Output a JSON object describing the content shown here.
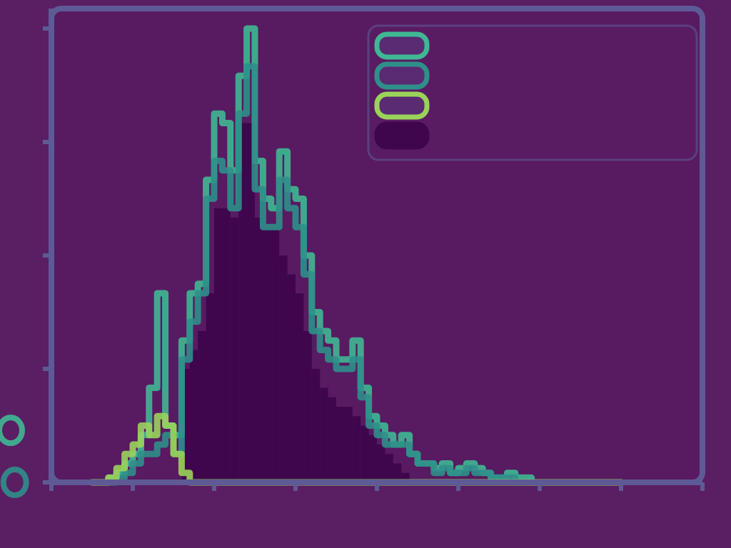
{
  "chart_data": {
    "type": "histogram",
    "title": "",
    "xlabel": "",
    "ylabel": "",
    "xlim": [
      0,
      8
    ],
    "ylim": [
      0,
      48
    ],
    "xticks": [
      0,
      1,
      2,
      3,
      4,
      5,
      6,
      7,
      8
    ],
    "yticks": [
      0,
      12,
      24,
      36,
      48
    ],
    "x_tick_labels": [
      "",
      "",
      "",
      "",
      "",
      "",
      "",
      "",
      ""
    ],
    "y_tick_labels": [
      "",
      "",
      "",
      "",
      ""
    ],
    "bin_width": 0.1,
    "bin_starts": [
      0.5,
      0.6,
      0.7,
      0.8,
      0.9,
      1.0,
      1.1,
      1.2,
      1.3,
      1.4,
      1.5,
      1.6,
      1.7,
      1.8,
      1.9,
      2.0,
      2.1,
      2.2,
      2.3,
      2.4,
      2.5,
      2.6,
      2.7,
      2.8,
      2.9,
      3.0,
      3.1,
      3.2,
      3.3,
      3.4,
      3.5,
      3.6,
      3.7,
      3.8,
      3.9,
      4.0,
      4.1,
      4.2,
      4.3,
      4.4,
      4.5,
      4.6,
      4.7,
      4.8,
      4.9,
      5.0,
      5.1,
      5.2,
      5.3,
      5.4,
      5.5,
      5.6,
      5.7,
      5.8,
      5.9,
      6.0,
      6.1,
      6.2,
      6.3,
      6.4,
      6.5,
      6.6,
      6.7,
      6.8,
      6.9
    ],
    "series": [
      {
        "name": "",
        "style": "outline",
        "color": "#3fb894",
        "values": [
          0,
          0,
          0.5,
          1,
          2,
          3,
          5,
          10,
          20,
          6,
          5,
          15,
          20,
          21,
          32,
          39,
          38,
          33,
          43,
          48,
          34,
          30,
          29,
          35,
          31,
          30,
          24,
          18,
          16,
          15,
          13,
          13,
          15,
          10,
          7,
          6,
          5,
          4,
          5,
          3,
          2,
          2,
          1.5,
          2,
          1,
          1.5,
          2,
          1.5,
          1,
          0.5,
          0.5,
          1,
          0.5,
          0.5,
          0,
          0,
          0,
          0,
          0,
          0,
          0,
          0,
          0,
          0,
          0
        ]
      },
      {
        "name": "",
        "style": "outline",
        "color": "#2f8f8a",
        "values": [
          0,
          0,
          0,
          0.5,
          1,
          2,
          3,
          3,
          4,
          5,
          3,
          13,
          17,
          20,
          30,
          34,
          33,
          29,
          39,
          44,
          31,
          27,
          27,
          32,
          29,
          27,
          22,
          16,
          14,
          13,
          12,
          12,
          13,
          9,
          6,
          5,
          4,
          4,
          4,
          3,
          2,
          2,
          1,
          1.5,
          1,
          1,
          1.5,
          1,
          1,
          0.5,
          0.5,
          0.5,
          0,
          0,
          0,
          0,
          0,
          0,
          0,
          0,
          0,
          0,
          0,
          0,
          0
        ]
      },
      {
        "name": "",
        "style": "outline",
        "color": "#9ad35a",
        "values": [
          0,
          0,
          0.5,
          1.5,
          3,
          4,
          6,
          5,
          7,
          6,
          3,
          1,
          0,
          0,
          0,
          0,
          0,
          0,
          0,
          0,
          0,
          0,
          0,
          0,
          0,
          0,
          0,
          0,
          0,
          0,
          0,
          0,
          0,
          0,
          0,
          0,
          0,
          0,
          0,
          0,
          0,
          0,
          0,
          0,
          0,
          0,
          0,
          0,
          0,
          0,
          0,
          0,
          0,
          0,
          0,
          0,
          0,
          0,
          0,
          0,
          0,
          0,
          0,
          0,
          0
        ]
      },
      {
        "name": "",
        "style": "filled",
        "color": "#3f064e",
        "values": [
          0,
          0,
          0,
          0,
          0,
          0,
          0,
          0,
          0,
          0,
          0,
          12,
          14,
          16,
          20,
          29,
          29,
          28,
          38,
          38,
          28,
          27,
          27,
          24,
          22,
          20,
          16,
          12,
          10,
          9,
          8,
          8,
          7,
          6,
          5,
          4,
          3,
          2,
          1,
          0,
          0,
          0,
          0,
          0,
          0,
          0,
          0,
          0,
          0,
          0,
          0,
          0,
          0,
          0,
          0,
          0,
          0,
          0,
          0,
          0,
          0,
          0,
          0,
          0,
          0
        ]
      }
    ],
    "outliers": [
      {
        "x": -0.45,
        "y": 0,
        "color": "#2f8f8a"
      },
      {
        "x": -0.5,
        "y": 5.5,
        "color": "#3fb894"
      }
    ],
    "legend_location": "upper-center",
    "grid": false
  },
  "colors": {
    "background": "#5a1e63",
    "axes_face": "#581a61",
    "axis_line": "#5e5a95"
  }
}
